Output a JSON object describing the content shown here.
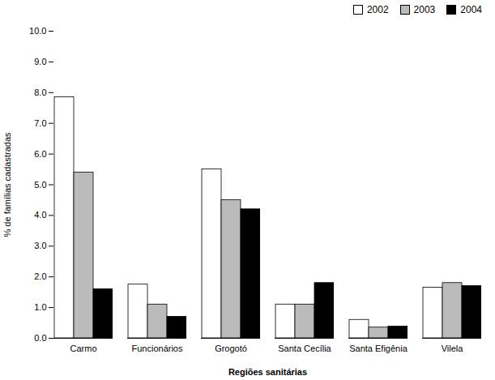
{
  "chart_data": {
    "type": "bar",
    "xlabel": "Regiões sanitárias",
    "ylabel": "% de famílias cadastradas",
    "categories": [
      "Carmo",
      "Funcionários",
      "Grogotó",
      "Santa Cecília",
      "Santa Efigênia",
      "Vilela"
    ],
    "series": [
      {
        "name": "2002",
        "color": "#ffffff",
        "values": [
          7.85,
          1.75,
          5.5,
          1.1,
          0.6,
          1.65
        ]
      },
      {
        "name": "2003",
        "color": "#bbbbbb",
        "values": [
          5.4,
          1.1,
          4.5,
          1.1,
          0.35,
          1.8
        ]
      },
      {
        "name": "2004",
        "color": "#000000",
        "values": [
          1.6,
          0.7,
          4.2,
          1.8,
          0.38,
          1.7
        ]
      }
    ],
    "ylim": [
      0.0,
      10.0
    ],
    "yticks": [
      {
        "value": 0,
        "label": "0.0"
      },
      {
        "value": 1,
        "label": "1.0"
      },
      {
        "value": 2,
        "label": "2.0"
      },
      {
        "value": 3,
        "label": "3.0"
      },
      {
        "value": 4,
        "label": "4.0"
      },
      {
        "value": 5,
        "label": "5.0"
      },
      {
        "value": 6,
        "label": "6.0"
      },
      {
        "value": 7,
        "label": "7.0"
      },
      {
        "value": 8,
        "label": "8.0"
      },
      {
        "value": 9,
        "label": "9.0"
      },
      {
        "value": 10,
        "label": "10.0"
      }
    ],
    "grid": false,
    "legend": "upper right"
  }
}
